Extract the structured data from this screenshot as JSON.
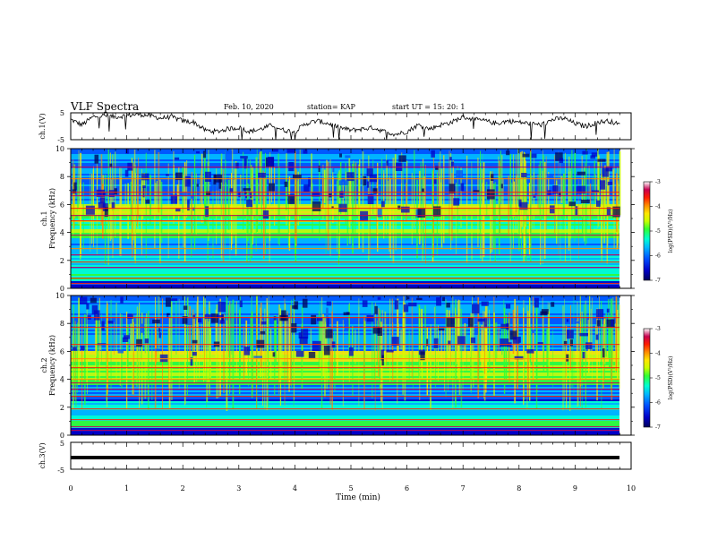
{
  "header": {
    "title": "VLF Spectra",
    "date": "Feb. 10, 2020",
    "station": "station= KAP",
    "start": "start  UT =   15: 20: 1"
  },
  "colors": {
    "colormap": [
      "#00005a",
      "#0000c8",
      "#0050ff",
      "#00b4ff",
      "#00ffd2",
      "#32ff32",
      "#c8ff00",
      "#ffe600",
      "#ff8c00",
      "#ff1e00",
      "#c80050",
      "#ffffff"
    ],
    "trace": "#000000",
    "axes": "#000000"
  },
  "chart_data": [
    {
      "type": "line",
      "panel": "ch1-voltage",
      "ylabel": "ch.1(V)",
      "ylim": [
        -5,
        5
      ],
      "yticks": [
        5,
        -5
      ],
      "xlim": [
        0,
        10
      ],
      "x": [
        0.0,
        0.2,
        0.4,
        0.6,
        0.8,
        1.0,
        1.2,
        1.4,
        1.6,
        1.8,
        2.0,
        2.2,
        2.4,
        2.6,
        2.8,
        3.0,
        3.2,
        3.4,
        3.6,
        3.8,
        4.0,
        4.2,
        4.4,
        4.6,
        4.8,
        5.0,
        5.2,
        5.4,
        5.6,
        5.8,
        6.0,
        6.2,
        6.4,
        6.6,
        6.8,
        7.0,
        7.2,
        7.4,
        7.6,
        7.8,
        8.0,
        8.2,
        8.4,
        8.6,
        8.8,
        9.0,
        9.2,
        9.4,
        9.6,
        9.8
      ],
      "values": [
        2.5,
        0.5,
        3.5,
        4.0,
        3.5,
        4.0,
        4.5,
        4.0,
        3.0,
        3.5,
        2.0,
        1.5,
        -1.5,
        -2.0,
        -1.0,
        -0.5,
        -2.0,
        -1.0,
        0.5,
        -1.5,
        -2.0,
        1.0,
        2.0,
        1.0,
        -0.5,
        -1.5,
        -1.0,
        -0.5,
        -2.0,
        -3.0,
        -2.0,
        0.5,
        -1.0,
        0.5,
        1.5,
        3.5,
        2.5,
        2.0,
        1.0,
        2.0,
        1.5,
        1.0,
        0.5,
        2.5,
        3.0,
        1.0,
        0.0,
        1.5,
        2.0,
        0.5
      ]
    },
    {
      "type": "heatmap",
      "panel": "ch1-spectrogram",
      "ylabel_top": "ch.1",
      "ylabel": "Frequency (kHz)",
      "ylim": [
        0,
        10
      ],
      "yticks": [
        0,
        2,
        4,
        6,
        8,
        10
      ],
      "xlim": [
        0,
        9.8
      ],
      "zlabel": "log(PSD)(V²/Hz)",
      "zlim": [
        -7,
        -3
      ],
      "zticks": [
        -3,
        -4,
        -5,
        -6,
        -7
      ]
    },
    {
      "type": "heatmap",
      "panel": "ch2-spectrogram",
      "ylabel_top": "ch.2",
      "ylabel": "Frequency (kHz)",
      "ylim": [
        0,
        10
      ],
      "yticks": [
        0,
        2,
        4,
        6,
        8,
        10
      ],
      "xlim": [
        0,
        9.8
      ],
      "zlabel": "log(PSD)(V²/Hz)",
      "zlim": [
        -7,
        -3
      ],
      "zticks": [
        -3,
        -4,
        -5,
        -6,
        -7
      ]
    },
    {
      "type": "line",
      "panel": "ch3-voltage",
      "ylabel": "ch.3(V)",
      "ylim": [
        -5,
        5
      ],
      "yticks": [
        5,
        -5
      ],
      "x": [
        0.0,
        9.8
      ],
      "values": [
        0.0,
        0.0
      ]
    }
  ],
  "xaxis": {
    "label": "Time (min)",
    "ticks": [
      "0",
      "1",
      "2",
      "3",
      "4",
      "5",
      "6",
      "7",
      "8",
      "9",
      "10"
    ]
  },
  "panels": {
    "ch1": {
      "ylabel": "ch.1(V)",
      "tick_top": "5",
      "tick_bottom": "-5"
    },
    "spec1": {
      "ylabel_top": "ch.1",
      "ylabel": "Frequency (kHz)",
      "ticks": [
        "0",
        "2",
        "4",
        "6",
        "8",
        "10"
      ],
      "cbar_label": "log(PSD)(V²/Hz)",
      "cbar_ticks": [
        "-3",
        "-4",
        "-5",
        "-6",
        "-7"
      ]
    },
    "spec2": {
      "ylabel_top": "ch.2",
      "ylabel": "Frequency (kHz)",
      "ticks": [
        "0",
        "2",
        "4",
        "6",
        "8",
        "10"
      ],
      "cbar_label": "log(PSD)(V²/Hz)",
      "cbar_ticks": [
        "-3",
        "-4",
        "-5",
        "-6",
        "-7"
      ]
    },
    "ch3": {
      "ylabel": "ch.3(V)",
      "tick_top": "5",
      "tick_bottom": "-5"
    }
  }
}
